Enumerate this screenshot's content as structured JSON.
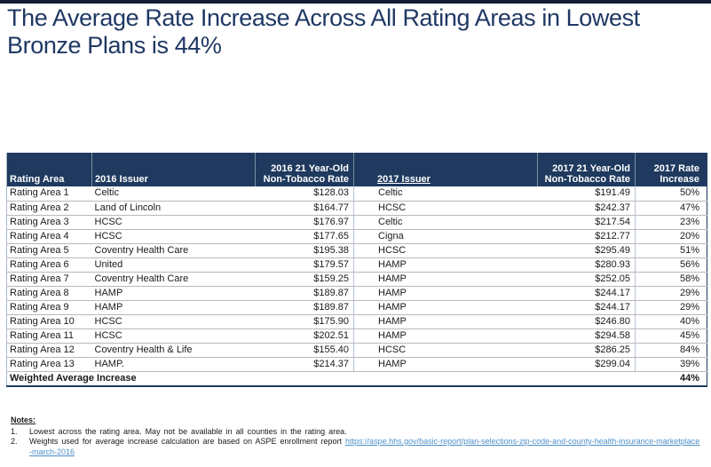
{
  "title": {
    "line1": "The Average Rate Increase Across All Rating Areas in Lowest",
    "line2": "Bronze Plans is 44%"
  },
  "table": {
    "column_keys": [
      "rating-area",
      "issuer-2016",
      "rate-2016",
      "issuer-2017",
      "rate-2017",
      "increase-2017"
    ],
    "columns": [
      {
        "label": "Rating Area"
      },
      {
        "label": "2016 Issuer"
      },
      {
        "label": "2016 21 Year-Old\nNon-Tobacco Rate"
      },
      {
        "label": "2017 Issuer"
      },
      {
        "label": "2017 21 Year-Old\nNon-Tobacco Rate"
      },
      {
        "label": "2017 Rate\nIncrease"
      }
    ],
    "rows": [
      [
        "Rating Area 1",
        "Celtic",
        "$128.03",
        "Celtic",
        "$191.49",
        "50%"
      ],
      [
        "Rating Area 2",
        "Land of Lincoln",
        "$164.77",
        "HCSC",
        "$242.37",
        "47%"
      ],
      [
        "Rating Area 3",
        "HCSC",
        "$176.97",
        "Celtic",
        "$217.54",
        "23%"
      ],
      [
        "Rating Area 4",
        "HCSC",
        "$177.65",
        "Cigna",
        "$212.77",
        "20%"
      ],
      [
        "Rating Area 5",
        "Coventry Health Care",
        "$195.38",
        "HCSC",
        "$295.49",
        "51%"
      ],
      [
        "Rating Area 6",
        "United",
        "$179.57",
        "HAMP",
        "$280.93",
        "56%"
      ],
      [
        "Rating Area 7",
        "Coventry Health Care",
        "$159.25",
        "HAMP",
        "$252.05",
        "58%"
      ],
      [
        "Rating Area 8",
        "HAMP",
        "$189.87",
        "HAMP",
        "$244.17",
        "29%"
      ],
      [
        "Rating Area 9",
        "HAMP",
        "$189.87",
        "HAMP",
        "$244.17",
        "29%"
      ],
      [
        "Rating Area 10",
        "HCSC",
        "$175.90",
        "HAMP",
        "$246.80",
        "40%"
      ],
      [
        "Rating Area 11",
        "HCSC",
        "$202.51",
        "HAMP",
        "$294.58",
        "45%"
      ],
      [
        "Rating Area 12",
        "Coventry Health & Life",
        "$155.40",
        "HCSC",
        "$286.25",
        "84%"
      ],
      [
        "Rating Area 13",
        "HAMP.",
        "$214.37",
        "HAMP",
        "$299.04",
        "39%"
      ]
    ],
    "footer": {
      "label": "Weighted Average Increase",
      "value": "44%"
    }
  },
  "notes": {
    "heading": "Notes:",
    "items": [
      {
        "number": "1.",
        "text": "Lowest across the rating area. May not be available in all counties in the rating area."
      },
      {
        "number": "2.",
        "text": "Weights used for average increase calculation are based on ASPE enrollment report",
        "link_text": "https://aspe.hhs.gov/basic-report/plan-selections-zip-code-and-county-health-insurance-marketplace-march-2016"
      }
    ]
  },
  "colors": {
    "header_navy": "#1F3A5E",
    "title_blue": "#1F3864",
    "link_blue": "#4E8FCA",
    "row_border": "#B9B9B9"
  }
}
